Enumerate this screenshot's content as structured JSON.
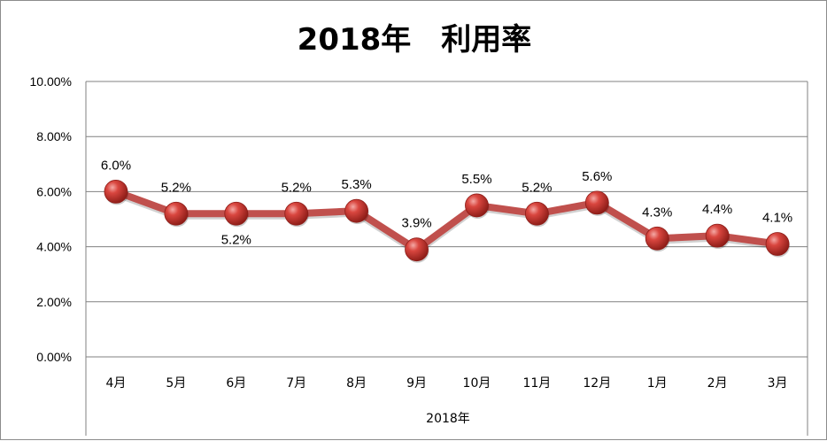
{
  "chart_data": {
    "type": "line",
    "title": "2018年　利用率",
    "xlabel": "2018年",
    "ylabel": "",
    "categories": [
      "4月",
      "5月",
      "6月",
      "7月",
      "8月",
      "9月",
      "10月",
      "11月",
      "12月",
      "1月",
      "2月",
      "3月"
    ],
    "values": [
      6.0,
      5.2,
      5.2,
      5.2,
      5.3,
      3.9,
      5.5,
      5.2,
      5.6,
      4.3,
      4.4,
      4.1
    ],
    "data_labels": [
      "6.0%",
      "5.2%",
      "5.2%",
      "5.2%",
      "5.3%",
      "3.9%",
      "5.5%",
      "5.2%",
      "5.6%",
      "4.3%",
      "4.4%",
      "4.1%"
    ],
    "label_position": [
      "above",
      "above",
      "below",
      "above",
      "above",
      "above",
      "above",
      "above",
      "above",
      "above",
      "above",
      "above"
    ],
    "ylim": [
      0,
      10
    ],
    "yticks": [
      "0.00%",
      "2.00%",
      "4.00%",
      "6.00%",
      "8.00%",
      "10.00%"
    ],
    "grid": true,
    "legend": "none",
    "colors": {
      "line": "#c0504d",
      "marker": "#c0312b",
      "grid": "#808080"
    }
  }
}
